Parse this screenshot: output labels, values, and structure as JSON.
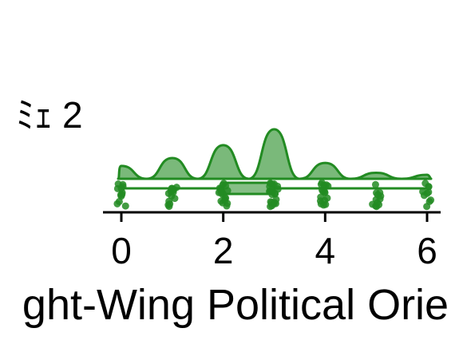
{
  "chart_data": {
    "type": "raincloud",
    "y_category_label": "2",
    "y_category_glyph": "ﾐｪ",
    "xlabel": "ght-Wing Political Orie",
    "xlim": [
      -0.2,
      6.2
    ],
    "x_ticks": [
      0,
      2,
      4,
      6
    ],
    "x_tick_labels": [
      "0",
      "2",
      "4",
      "6"
    ],
    "color": "#228B22",
    "density": {
      "x": [
        0,
        0.5,
        1,
        1.5,
        2,
        2.5,
        3,
        3.5,
        4,
        4.5,
        5,
        5.5,
        6
      ],
      "y": [
        0.26,
        0.0,
        0.42,
        0.0,
        0.68,
        0.0,
        1.0,
        0.0,
        0.32,
        0.0,
        0.12,
        0.0,
        0.08
      ]
    },
    "points": {
      "x_levels": [
        0,
        1,
        2,
        3,
        4,
        5,
        6
      ],
      "counts": [
        12,
        14,
        18,
        20,
        16,
        12,
        10
      ]
    },
    "boxplot": {
      "q1": 2,
      "median": 3,
      "q3": 3,
      "whisker_low": 0,
      "whisker_high": 6
    }
  }
}
